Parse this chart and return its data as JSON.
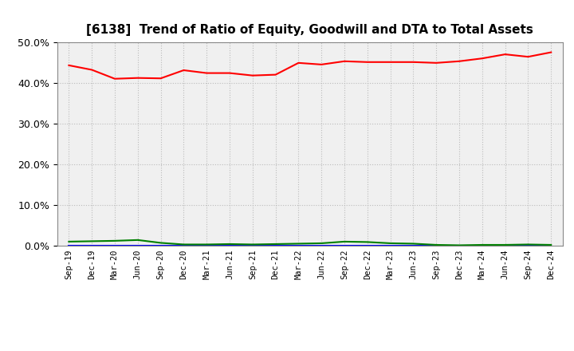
{
  "title": "[6138]  Trend of Ratio of Equity, Goodwill and DTA to Total Assets",
  "x_labels": [
    "Sep-19",
    "Dec-19",
    "Mar-20",
    "Jun-20",
    "Sep-20",
    "Dec-20",
    "Mar-21",
    "Jun-21",
    "Sep-21",
    "Dec-21",
    "Mar-22",
    "Jun-22",
    "Sep-22",
    "Dec-22",
    "Mar-23",
    "Jun-23",
    "Sep-23",
    "Dec-23",
    "Mar-24",
    "Jun-24",
    "Sep-24",
    "Dec-24"
  ],
  "equity": [
    0.443,
    0.432,
    0.41,
    0.412,
    0.411,
    0.431,
    0.424,
    0.424,
    0.418,
    0.42,
    0.449,
    0.445,
    0.453,
    0.451,
    0.451,
    0.451,
    0.449,
    0.453,
    0.46,
    0.47,
    0.464,
    0.475
  ],
  "goodwill": [
    0.0,
    0.0,
    0.0,
    0.0,
    0.0,
    0.0,
    0.0,
    0.0,
    0.0,
    0.0,
    0.0,
    0.0,
    0.0,
    0.0,
    0.0,
    0.0,
    0.0,
    0.0,
    0.0,
    0.0,
    0.0,
    0.0
  ],
  "dta": [
    0.01,
    0.011,
    0.012,
    0.014,
    0.007,
    0.003,
    0.003,
    0.004,
    0.003,
    0.004,
    0.005,
    0.006,
    0.01,
    0.009,
    0.006,
    0.005,
    0.002,
    0.001,
    0.002,
    0.002,
    0.003,
    0.002
  ],
  "equity_color": "#FF0000",
  "goodwill_color": "#0000FF",
  "dta_color": "#008000",
  "bg_color": "#FFFFFF",
  "plot_bg_color": "#F0F0F0",
  "grid_color": "#BBBBBB",
  "ylim": [
    0.0,
    0.5
  ],
  "yticks": [
    0.0,
    0.1,
    0.2,
    0.3,
    0.4,
    0.5
  ]
}
